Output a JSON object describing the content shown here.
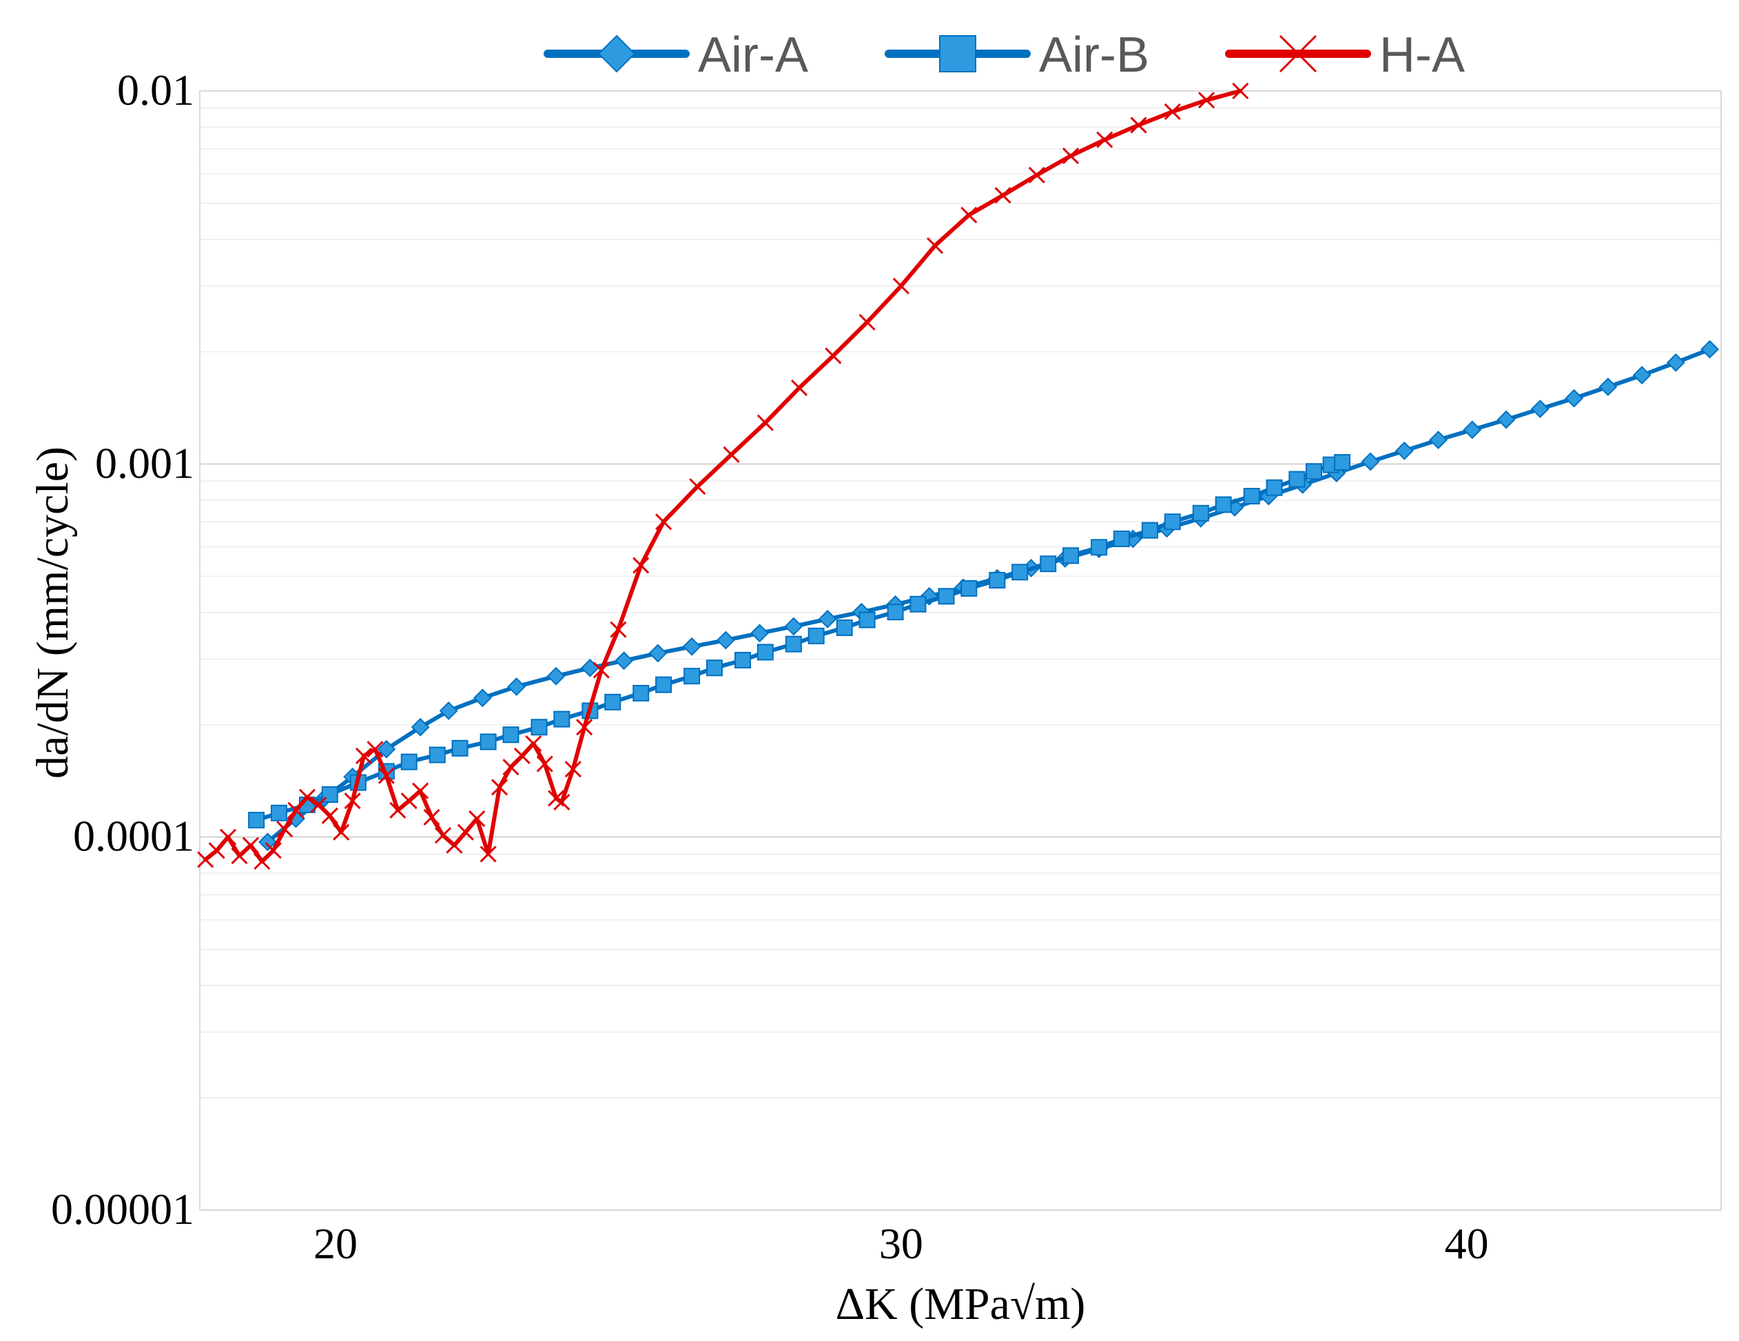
{
  "chart_data": {
    "type": "line",
    "title": "",
    "xlabel": "ΔK (MPa√m)",
    "ylabel": "da/dN (mm/cycle)",
    "xlim": [
      17.6,
      44.5
    ],
    "ylim": [
      1e-05,
      0.01
    ],
    "yscale": "log",
    "x_ticks": [
      20,
      30,
      40
    ],
    "x_tick_labels": [
      "20",
      "30",
      "40"
    ],
    "y_ticks": [
      1e-05,
      0.0001,
      0.001,
      0.01
    ],
    "y_tick_labels": [
      "0.00001",
      "0.0001",
      "0.001",
      "0.01"
    ],
    "grid": "horizontal major and minor",
    "legend_position": "top-center",
    "series": [
      {
        "name": "Air-A",
        "color": "#0070C0",
        "marker": "diamond",
        "points": [
          [
            18.8,
            9.7e-05
          ],
          [
            19.3,
            0.000112
          ],
          [
            19.8,
            0.000127
          ],
          [
            20.3,
            0.000145
          ],
          [
            20.9,
            0.000172
          ],
          [
            21.5,
            0.000197
          ],
          [
            22.0,
            0.000218
          ],
          [
            22.6,
            0.000236
          ],
          [
            23.2,
            0.000253
          ],
          [
            23.9,
            0.00027
          ],
          [
            24.5,
            0.000284
          ],
          [
            25.1,
            0.000297
          ],
          [
            25.7,
            0.000311
          ],
          [
            26.3,
            0.000324
          ],
          [
            26.9,
            0.000337
          ],
          [
            27.5,
            0.000352
          ],
          [
            28.1,
            0.000367
          ],
          [
            28.7,
            0.000384
          ],
          [
            29.3,
            0.000401
          ],
          [
            29.9,
            0.00042
          ],
          [
            30.5,
            0.000442
          ],
          [
            31.1,
            0.000466
          ],
          [
            31.7,
            0.000494
          ],
          [
            32.3,
            0.000526
          ],
          [
            32.9,
            0.000558
          ],
          [
            33.5,
            0.000592
          ],
          [
            34.1,
            0.00063
          ],
          [
            34.7,
            0.000672
          ],
          [
            35.3,
            0.000715
          ],
          [
            35.9,
            0.000765
          ],
          [
            36.5,
            0.00082
          ],
          [
            37.1,
            0.00088
          ],
          [
            37.7,
            0.000945
          ],
          [
            38.3,
            0.001015
          ],
          [
            38.9,
            0.001085
          ],
          [
            39.5,
            0.00116
          ],
          [
            40.1,
            0.001235
          ],
          [
            40.7,
            0.001315
          ],
          [
            41.3,
            0.001405
          ],
          [
            41.9,
            0.0015
          ],
          [
            42.5,
            0.00161
          ],
          [
            43.1,
            0.00173
          ],
          [
            43.7,
            0.00187
          ],
          [
            44.3,
            0.00203
          ]
        ]
      },
      {
        "name": "Air-B",
        "color": "#0070C0",
        "marker": "square",
        "points": [
          [
            18.6,
            0.000111
          ],
          [
            19.0,
            0.000116
          ],
          [
            19.5,
            0.000122
          ],
          [
            19.9,
            0.00013
          ],
          [
            20.4,
            0.00014
          ],
          [
            20.9,
            0.00015
          ],
          [
            21.3,
            0.000159
          ],
          [
            21.8,
            0.000166
          ],
          [
            22.2,
            0.000173
          ],
          [
            22.7,
            0.00018
          ],
          [
            23.1,
            0.000188
          ],
          [
            23.6,
            0.000197
          ],
          [
            24.0,
            0.000207
          ],
          [
            24.5,
            0.000218
          ],
          [
            24.9,
            0.00023
          ],
          [
            25.4,
            0.000243
          ],
          [
            25.8,
            0.000256
          ],
          [
            26.3,
            0.00027
          ],
          [
            26.7,
            0.000284
          ],
          [
            27.2,
            0.000298
          ],
          [
            27.6,
            0.000313
          ],
          [
            28.1,
            0.000329
          ],
          [
            28.5,
            0.000346
          ],
          [
            29.0,
            0.000364
          ],
          [
            29.4,
            0.000382
          ],
          [
            29.9,
            0.000401
          ],
          [
            30.3,
            0.000421
          ],
          [
            30.8,
            0.000442
          ],
          [
            31.2,
            0.000464
          ],
          [
            31.7,
            0.000488
          ],
          [
            32.1,
            0.000513
          ],
          [
            32.6,
            0.00054
          ],
          [
            33.0,
            0.000568
          ],
          [
            33.5,
            0.000598
          ],
          [
            33.9,
            0.00063
          ],
          [
            34.4,
            0.000664
          ],
          [
            34.8,
            0.0007
          ],
          [
            35.3,
            0.000738
          ],
          [
            35.7,
            0.000778
          ],
          [
            36.2,
            0.00082
          ],
          [
            36.6,
            0.000864
          ],
          [
            37.0,
            0.00091
          ],
          [
            37.3,
            0.000955
          ],
          [
            37.6,
            0.000995
          ],
          [
            37.8,
            0.00101
          ]
        ]
      },
      {
        "name": "H-A",
        "color": "#E00000",
        "marker": "x",
        "points": [
          [
            17.7,
            8.7e-05
          ],
          [
            17.9,
            9.2e-05
          ],
          [
            18.1,
            0.0001
          ],
          [
            18.3,
            8.9e-05
          ],
          [
            18.5,
            9.5e-05
          ],
          [
            18.7,
            8.6e-05
          ],
          [
            18.9,
            9.2e-05
          ],
          [
            19.1,
            0.000105
          ],
          [
            19.3,
            0.000118
          ],
          [
            19.5,
            0.000128
          ],
          [
            19.7,
            0.000122
          ],
          [
            19.9,
            0.000114
          ],
          [
            20.1,
            0.000103
          ],
          [
            20.3,
            0.000125
          ],
          [
            20.5,
            0.000165
          ],
          [
            20.7,
            0.000172
          ],
          [
            20.9,
            0.000146
          ],
          [
            21.1,
            0.000118
          ],
          [
            21.3,
            0.000125
          ],
          [
            21.5,
            0.000133
          ],
          [
            21.7,
            0.000113
          ],
          [
            21.9,
            0.000101
          ],
          [
            22.1,
            9.5e-05
          ],
          [
            22.3,
            0.000103
          ],
          [
            22.5,
            0.000112
          ],
          [
            22.7,
            9e-05
          ],
          [
            22.9,
            0.000136
          ],
          [
            23.1,
            0.000154
          ],
          [
            23.3,
            0.000165
          ],
          [
            23.5,
            0.000178
          ],
          [
            23.7,
            0.000157
          ],
          [
            23.9,
            0.000127
          ],
          [
            24.0,
            0.000124
          ],
          [
            24.2,
            0.000152
          ],
          [
            24.4,
            0.000197
          ],
          [
            24.7,
            0.00028
          ],
          [
            25.0,
            0.00036
          ],
          [
            25.4,
            0.000535
          ],
          [
            25.8,
            0.0007
          ],
          [
            26.4,
            0.00087
          ],
          [
            27.0,
            0.00106
          ],
          [
            27.6,
            0.00129
          ],
          [
            28.2,
            0.0016
          ],
          [
            28.8,
            0.00195
          ],
          [
            29.4,
            0.0024
          ],
          [
            30.0,
            0.003
          ],
          [
            30.6,
            0.00385
          ],
          [
            31.2,
            0.00465
          ],
          [
            31.8,
            0.00525
          ],
          [
            32.4,
            0.00595
          ],
          [
            33.0,
            0.0067
          ],
          [
            33.6,
            0.0074
          ],
          [
            34.2,
            0.0081
          ],
          [
            34.8,
            0.0088
          ],
          [
            35.4,
            0.00945
          ],
          [
            36.0,
            0.01
          ]
        ]
      }
    ]
  }
}
